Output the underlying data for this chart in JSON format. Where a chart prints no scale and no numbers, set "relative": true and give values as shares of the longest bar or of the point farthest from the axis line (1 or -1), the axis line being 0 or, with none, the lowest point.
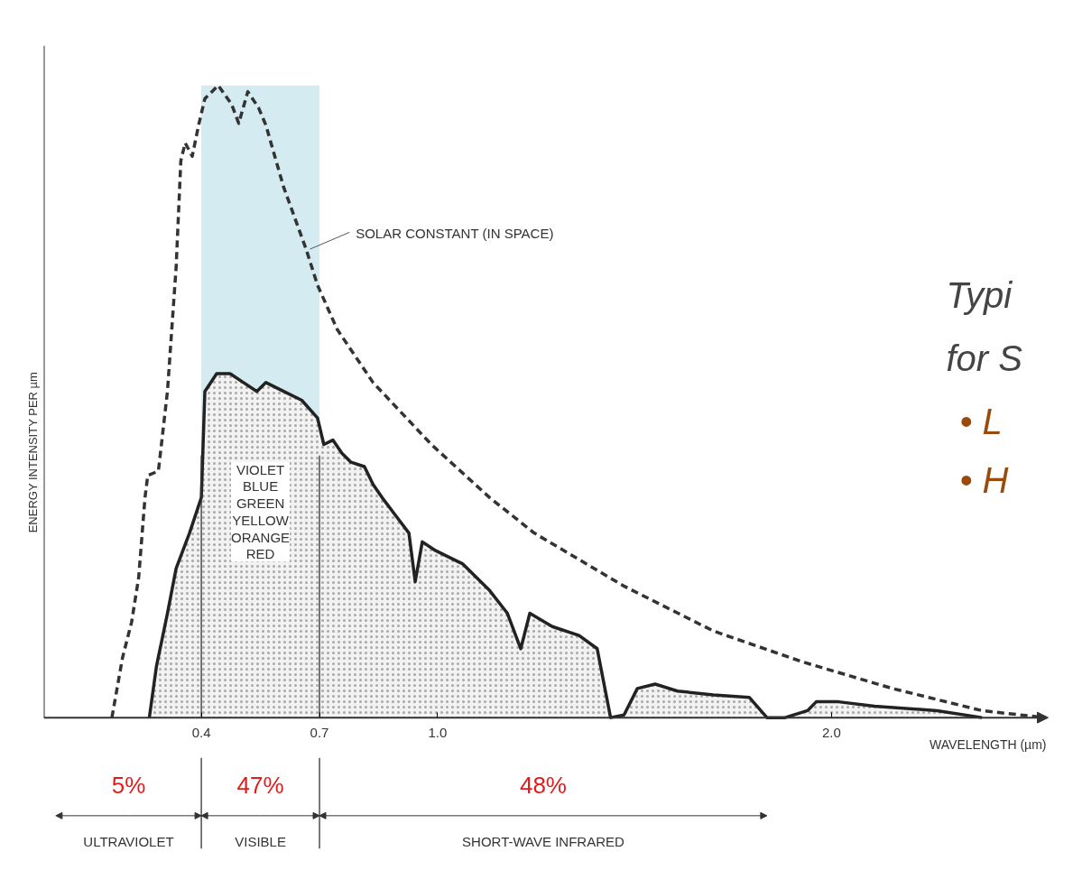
{
  "chart_data": {
    "type": "line",
    "relative": true,
    "ylabel": "ENERGY INTENSITY PER µm",
    "xlabel": "WAVELENGTH (µm)",
    "xlim": [
      0,
      2.55
    ],
    "xticks": [
      0.4,
      0.7,
      {
        "value": 1.0,
        "label": "1.0"
      },
      {
        "value": 2.0,
        "label": "2.0"
      }
    ],
    "grid": false,
    "legend": false,
    "series": [
      {
        "name": "SOLAR CONSTANT (IN SPACE)",
        "line_style": "dashed",
        "color": "#333333",
        "x": [
          0.173,
          0.2,
          0.223,
          0.241,
          0.257,
          0.264,
          0.291,
          0.314,
          0.336,
          0.348,
          0.359,
          0.377,
          0.393,
          0.409,
          0.443,
          0.477,
          0.495,
          0.518,
          0.545,
          0.564,
          0.609,
          0.666,
          0.695,
          0.745,
          0.836,
          0.984,
          1.132,
          1.245,
          1.473,
          1.7,
          1.927,
          2.155,
          2.382,
          2.541
        ],
        "values": [
          0,
          0.095,
          0.151,
          0.222,
          0.348,
          0.383,
          0.39,
          0.516,
          0.712,
          0.881,
          0.909,
          0.888,
          0.937,
          0.979,
          1,
          0.97,
          0.94,
          0.99,
          0.965,
          0.937,
          0.839,
          0.741,
          0.684,
          0.614,
          0.53,
          0.432,
          0.348,
          0.292,
          0.208,
          0.137,
          0.088,
          0.046,
          0.011,
          0
        ]
      },
      {
        "type": "area",
        "line_style": "solid",
        "color": "#222222",
        "x": [
          0.268,
          0.286,
          0.314,
          0.336,
          0.37,
          0.4,
          0.409,
          0.439,
          0.473,
          0.507,
          0.541,
          0.564,
          0.609,
          0.655,
          0.695,
          0.711,
          0.734,
          0.757,
          0.78,
          0.814,
          0.836,
          0.859,
          0.893,
          0.927,
          0.943,
          0.961,
          0.995,
          1.064,
          1.132,
          1.177,
          1.211,
          1.234,
          1.291,
          1.359,
          1.405,
          1.439,
          1.473,
          1.507,
          1.552,
          1.609,
          1.7,
          1.791,
          1.836,
          1.882,
          1.939,
          1.961,
          2.018,
          2.109,
          2.268,
          2.382
        ],
        "values": [
          0,
          0.081,
          0.165,
          0.236,
          0.292,
          0.348,
          0.516,
          0.544,
          0.544,
          0.53,
          0.516,
          0.53,
          0.516,
          0.502,
          0.474,
          0.432,
          0.439,
          0.418,
          0.404,
          0.397,
          0.369,
          0.348,
          0.32,
          0.292,
          0.215,
          0.278,
          0.264,
          0.243,
          0.201,
          0.165,
          0.109,
          0.165,
          0.144,
          0.13,
          0.109,
          0,
          0.004,
          0.046,
          0.053,
          0.042,
          0.036,
          0.032,
          0,
          0,
          0.011,
          0.025,
          0.025,
          0.018,
          0.011,
          0
        ]
      }
    ],
    "bands": [
      {
        "axis": "x",
        "from": 0.4,
        "to": 0.7,
        "label": "VIOLET\nBLUE\nGREEN\nYELLOW\nORANGE\nRED",
        "color": "#9fd3e0"
      }
    ],
    "ref_lines": [
      {
        "axis": "x",
        "value": 0.4
      },
      {
        "axis": "x",
        "value": 0.7
      }
    ],
    "annotations": [
      "5%",
      "47%",
      "48%",
      "ULTRAVIOLET",
      "VISIBLE",
      "SHORT-WAVE INFRARED",
      "Typi",
      "for S",
      "• L",
      "• H"
    ]
  }
}
